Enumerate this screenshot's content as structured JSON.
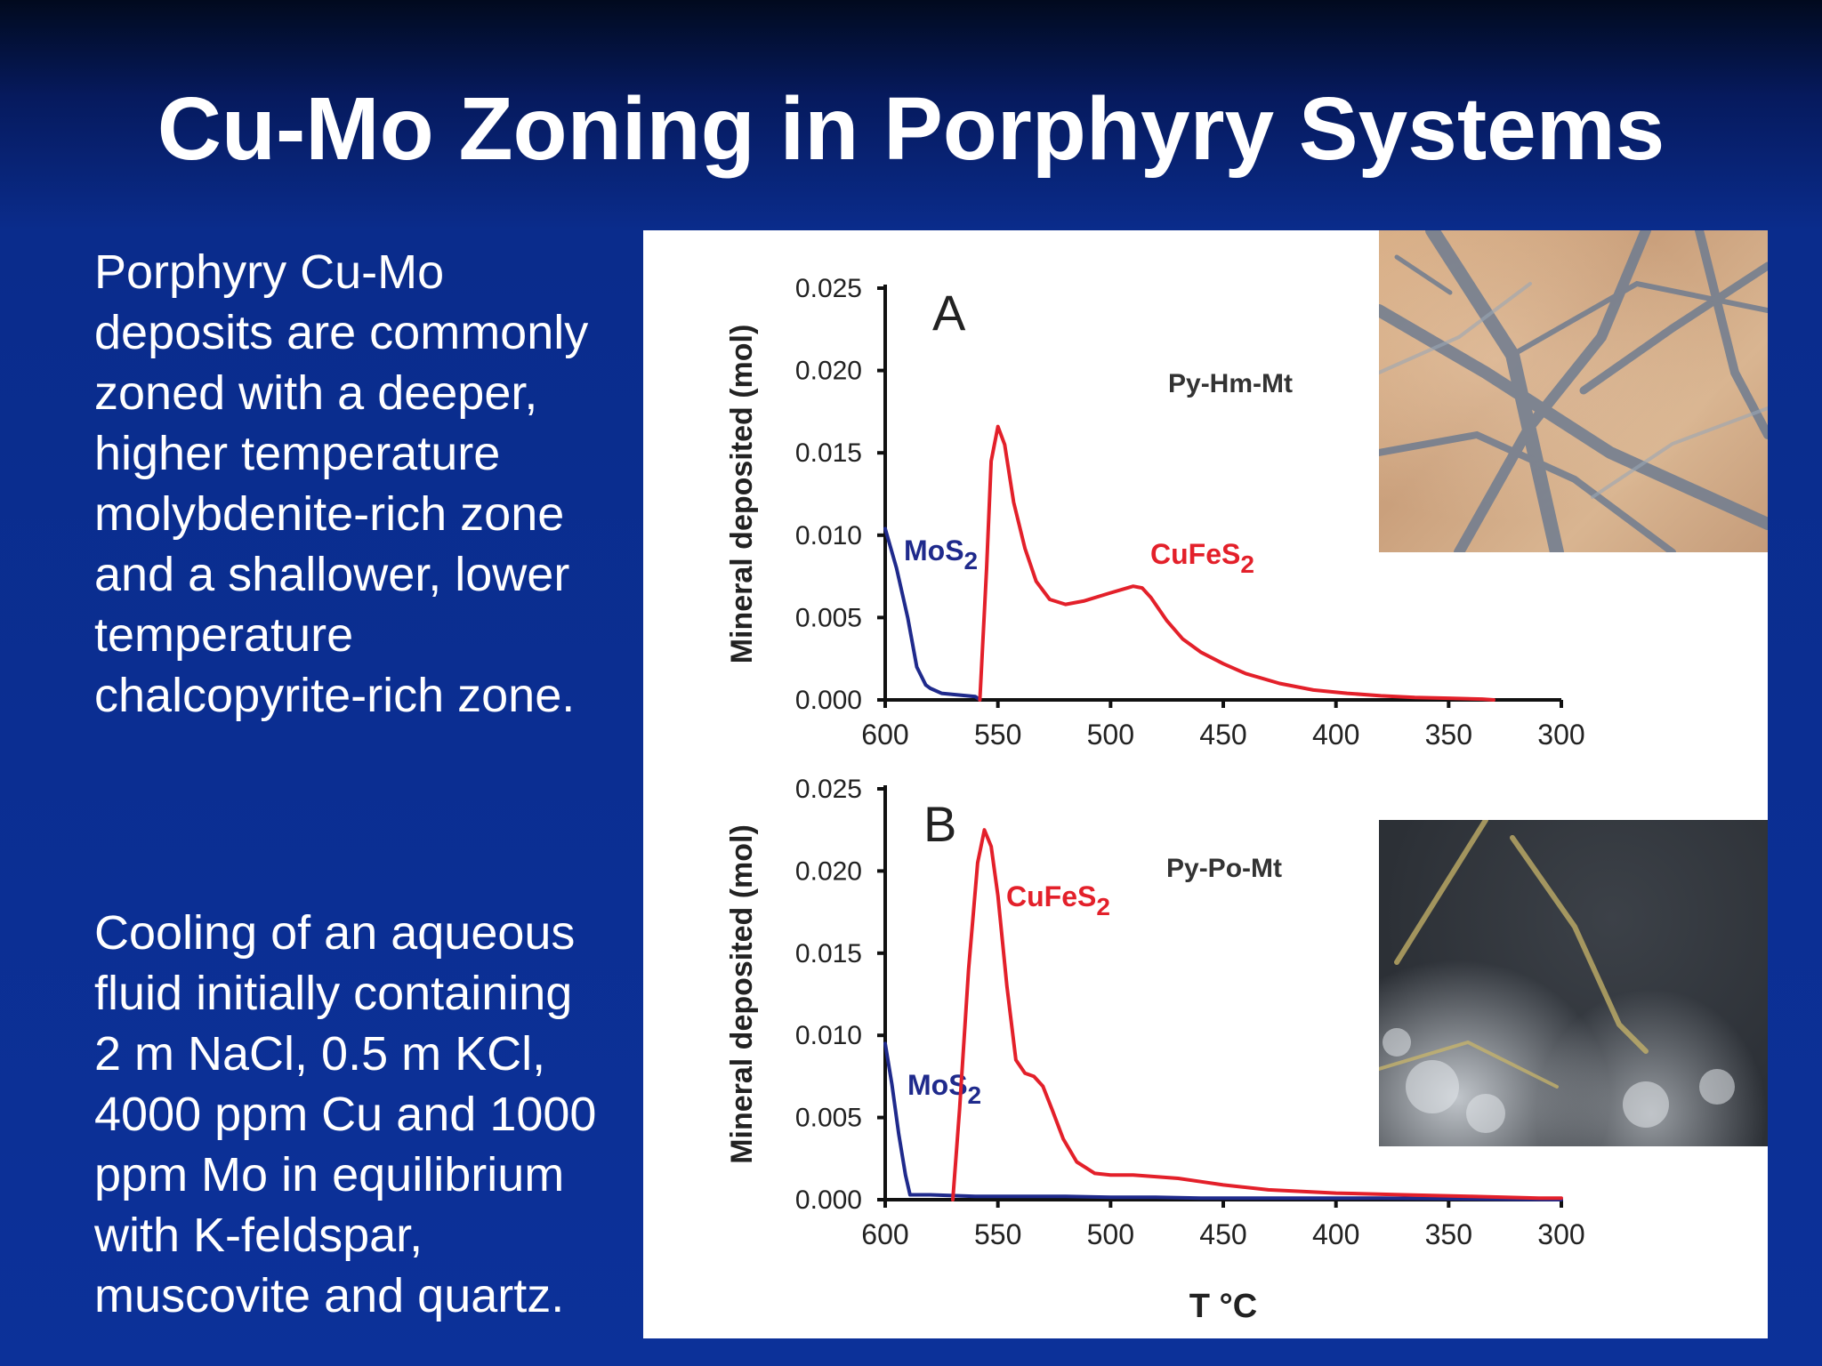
{
  "slide": {
    "title": "Cu-Mo Zoning in Porphyry Systems",
    "paragraph_1": [
      "Porphyry Cu-Mo",
      "deposits are commonly",
      "zoned with a deeper,",
      "higher temperature",
      "molybdenite-rich zone",
      "and a shallower, lower",
      "temperature",
      "chalcopyrite-rich zone."
    ],
    "paragraph_2": [
      "Cooling of an aqueous",
      "fluid initially containing",
      "2 m NaCl, 0.5 m KCl,",
      "4000 ppm Cu and 1000",
      "ppm Mo in equilibrium",
      "with K-feldspar,",
      "muscovite and quartz."
    ]
  },
  "colors": {
    "mos2": "#1f2a8c",
    "cufes2": "#e3202a",
    "axis": "#111111"
  },
  "chart_data": [
    {
      "type": "line",
      "panel_label": "A",
      "assemblage": "Py-Hm-Mt",
      "xlabel": "",
      "ylabel": "Mineral deposited (mol)",
      "xlim": [
        600,
        300
      ],
      "ylim": [
        0,
        0.025
      ],
      "x_ticks": [
        "600",
        "550",
        "500",
        "450",
        "400",
        "350",
        "300"
      ],
      "y_ticks": [
        "0.000",
        "0.005",
        "0.010",
        "0.015",
        "0.020",
        "0.025"
      ],
      "series": [
        {
          "name": "MoS",
          "name_sub": "2",
          "color_key": "mos2",
          "x": [
            600,
            595,
            590,
            586,
            582,
            580,
            575,
            560,
            558
          ],
          "y": [
            0.0104,
            0.008,
            0.005,
            0.002,
            0.0009,
            0.0007,
            0.0004,
            0.0002,
            0.0
          ]
        },
        {
          "name": "CuFeS",
          "name_sub": "2",
          "color_key": "cufes2",
          "x": [
            558,
            555,
            553,
            550,
            547,
            543,
            538,
            533,
            527,
            520,
            512,
            500,
            490,
            486,
            482,
            475,
            468,
            460,
            450,
            440,
            425,
            410,
            395,
            380,
            365,
            350,
            335,
            330
          ],
          "y": [
            0.0,
            0.008,
            0.0145,
            0.0166,
            0.0155,
            0.012,
            0.0092,
            0.0072,
            0.0061,
            0.0058,
            0.006,
            0.0065,
            0.0069,
            0.0068,
            0.0062,
            0.0048,
            0.0037,
            0.0029,
            0.0022,
            0.0016,
            0.001,
            0.0006,
            0.0004,
            0.00025,
            0.00015,
            0.0001,
            5e-05,
            0.0
          ]
        }
      ]
    },
    {
      "type": "line",
      "panel_label": "B",
      "assemblage": "Py-Po-Mt",
      "xlabel": "T °C",
      "ylabel": "Mineral deposited (mol)",
      "xlim": [
        600,
        300
      ],
      "ylim": [
        0,
        0.025
      ],
      "x_ticks": [
        "600",
        "550",
        "500",
        "450",
        "400",
        "350",
        "300"
      ],
      "y_ticks": [
        "0.000",
        "0.005",
        "0.010",
        "0.015",
        "0.020",
        "0.025"
      ],
      "series": [
        {
          "name": "MoS",
          "name_sub": "2",
          "color_key": "mos2",
          "x": [
            600,
            597,
            594,
            591,
            589,
            580,
            560,
            540,
            520,
            500,
            480,
            460,
            420,
            380,
            340,
            300
          ],
          "y": [
            0.0095,
            0.007,
            0.004,
            0.0015,
            0.0003,
            0.0003,
            0.0002,
            0.0002,
            0.0002,
            0.00015,
            0.00015,
            0.0001,
            0.0001,
            0.0001,
            5e-05,
            0.0
          ]
        },
        {
          "name": "CuFeS",
          "name_sub": "2",
          "color_key": "cufes2",
          "x": [
            570,
            567,
            563,
            559,
            556,
            553,
            550,
            546,
            542,
            538,
            534,
            530,
            526,
            521,
            515,
            507,
            500,
            490,
            480,
            470,
            460,
            450,
            430,
            400,
            370,
            340,
            310,
            300
          ],
          "y": [
            0.0,
            0.0055,
            0.014,
            0.0205,
            0.0225,
            0.0215,
            0.0185,
            0.013,
            0.0085,
            0.0077,
            0.0075,
            0.0069,
            0.0055,
            0.0037,
            0.0023,
            0.0016,
            0.0015,
            0.0015,
            0.0014,
            0.0013,
            0.0011,
            0.0009,
            0.0006,
            0.0004,
            0.0003,
            0.0002,
            0.0001,
            0.0001
          ]
        }
      ]
    }
  ]
}
